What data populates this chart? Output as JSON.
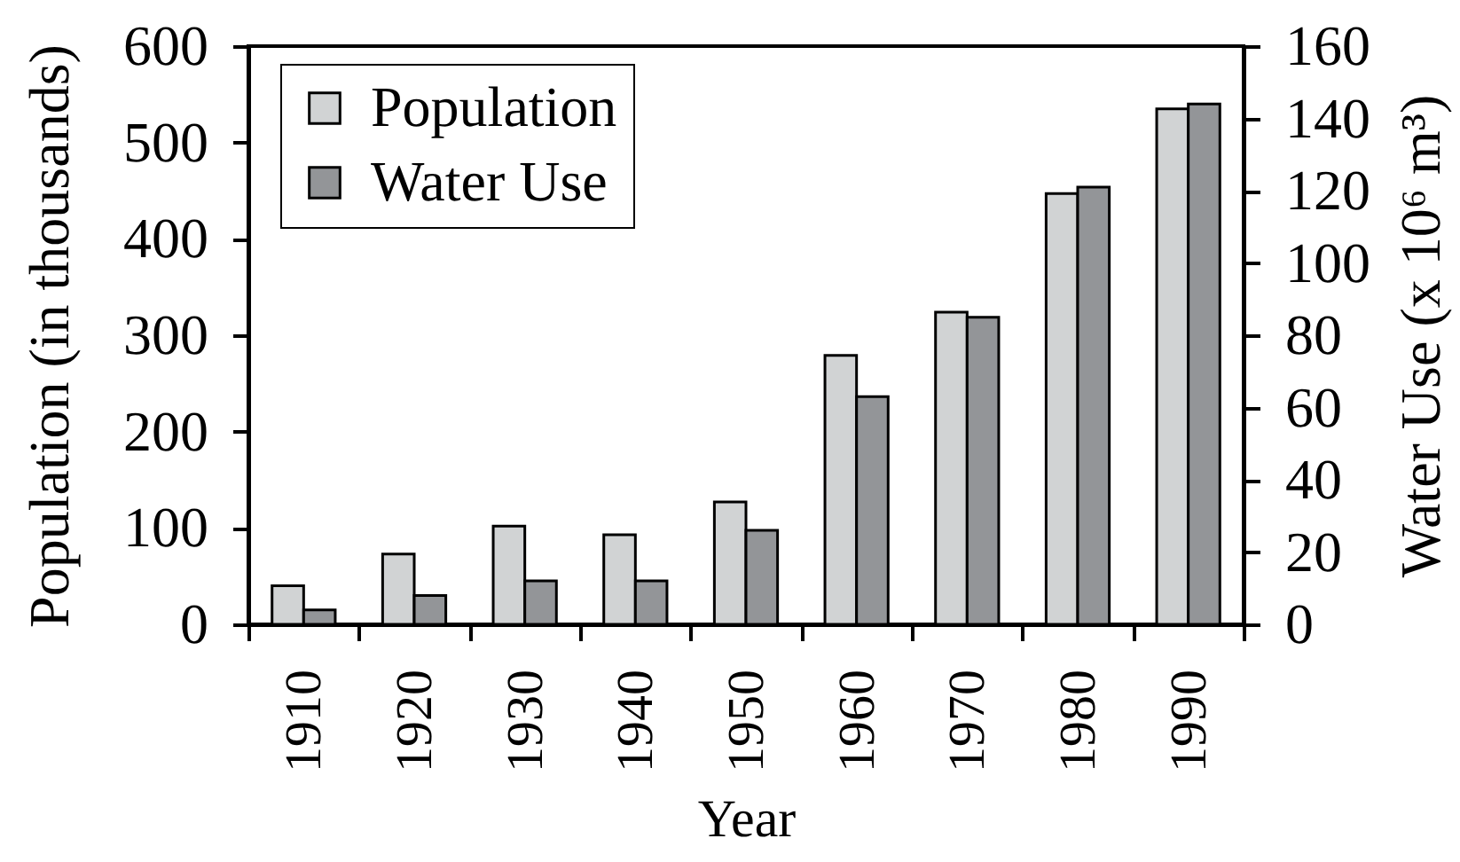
{
  "chart_data": {
    "type": "bar",
    "xlabel": "Year",
    "ylabel": "Population (in thousands)",
    "y2label": "Water Use (x 10⁶ m³)",
    "categories": [
      "1910",
      "1920",
      "1930",
      "1940",
      "1950",
      "1960",
      "1970",
      "1980",
      "1990"
    ],
    "series": [
      {
        "name": "Population",
        "color": "#d1d3d4",
        "values": [
          40,
          73,
          102,
          93,
          127,
          279,
          324,
          447,
          535
        ]
      },
      {
        "name": "Water Use",
        "color": "#939598",
        "axis": "y2",
        "values": [
          4,
          8,
          12,
          12,
          26,
          63,
          85,
          121,
          144
        ]
      }
    ],
    "ylim": [
      0,
      600
    ],
    "yticks": [
      0,
      100,
      200,
      300,
      400,
      500,
      600
    ],
    "y2lim": [
      0,
      160
    ],
    "y2ticks": [
      0,
      20,
      40,
      60,
      80,
      100,
      120,
      140,
      160
    ],
    "legend": "top left"
  }
}
